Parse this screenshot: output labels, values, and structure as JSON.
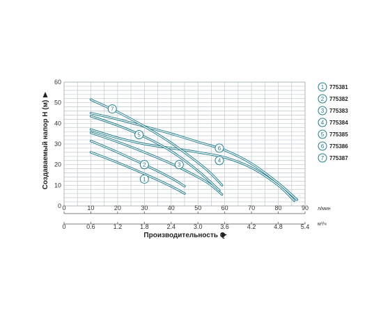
{
  "chart_data": {
    "type": "line",
    "ylabel": "Создаваемый напор H (м)",
    "xlabel": "Производительность Q",
    "x_unit_primary": "л/мин",
    "x_unit_secondary": "м³/ч",
    "xlim": [
      0,
      90
    ],
    "ylim": [
      0,
      60
    ],
    "y_ticks": [
      "0",
      "10",
      "20",
      "30",
      "40",
      "50",
      "60"
    ],
    "x_ticks_primary": [
      "0",
      "10",
      "20",
      "30",
      "40",
      "50",
      "60",
      "70",
      "80",
      "90"
    ],
    "x_ticks_secondary": [
      "0",
      "0.6",
      "1.2",
      "1.8",
      "2.4",
      "3.0",
      "3.6",
      "4.2",
      "4.8",
      "5.4"
    ],
    "grid": true,
    "legend_position": "right",
    "line_color": "#1f7a8c",
    "series": [
      {
        "marker": "1",
        "name": "775381",
        "label_at": [
          30,
          13
        ],
        "x": [
          10,
          20,
          30,
          40,
          45
        ],
        "y": [
          26,
          21,
          15.5,
          9.5,
          6
        ]
      },
      {
        "marker": "2",
        "name": "775382",
        "label_at": [
          30,
          20
        ],
        "x": [
          10,
          20,
          30,
          40,
          45
        ],
        "y": [
          31.5,
          26,
          20,
          13.5,
          9.5
        ]
      },
      {
        "marker": "3",
        "name": "775383",
        "label_at": [
          43,
          20
        ],
        "x": [
          10,
          20,
          30,
          40,
          50,
          55,
          59
        ],
        "y": [
          35.5,
          31,
          26,
          20.5,
          14,
          10,
          5.5
        ]
      },
      {
        "marker": "4",
        "name": "775384",
        "label_at": [
          58,
          22
        ],
        "x": [
          10,
          20,
          30,
          40,
          50,
          60,
          70,
          80,
          86
        ],
        "y": [
          37,
          33,
          30,
          28,
          26,
          23.5,
          18.5,
          10,
          2.5
        ]
      },
      {
        "marker": "5",
        "name": "775385",
        "label_at": [
          28,
          34.5
        ],
        "x": [
          10,
          20,
          30,
          40,
          50,
          58
        ],
        "y": [
          43.5,
          39,
          33.5,
          26.5,
          17,
          7.5
        ]
      },
      {
        "marker": "6",
        "name": "775386",
        "label_at": [
          58,
          28
        ],
        "x": [
          10,
          20,
          30,
          40,
          50,
          60,
          70,
          80,
          87
        ],
        "y": [
          45,
          42,
          38.5,
          35,
          31,
          27,
          20.5,
          11,
          3
        ]
      },
      {
        "marker": "7",
        "name": "775387",
        "label_at": [
          18,
          47
        ],
        "x": [
          10,
          20,
          30,
          40,
          50,
          55,
          59
        ],
        "y": [
          51.5,
          45.5,
          38.5,
          30.5,
          21,
          15.5,
          10
        ]
      }
    ]
  }
}
